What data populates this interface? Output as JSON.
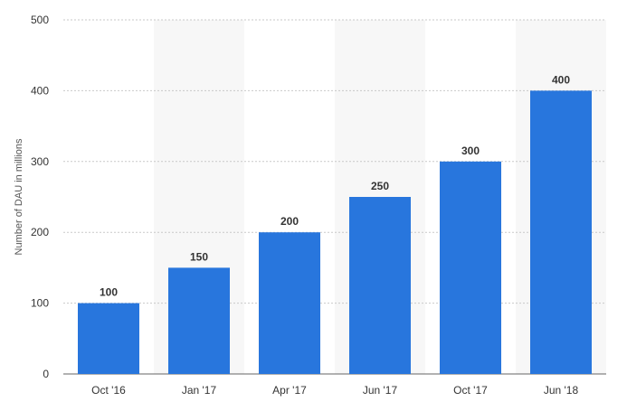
{
  "chart_data": {
    "type": "bar",
    "title": "",
    "xlabel": "",
    "ylabel": "Number of DAU in millions",
    "categories": [
      "Oct '16",
      "Jan '17",
      "Apr '17",
      "Jun '17",
      "Oct '17",
      "Jun '18"
    ],
    "values": [
      100,
      150,
      200,
      250,
      300,
      400
    ],
    "data_labels": [
      "100",
      "150",
      "200",
      "250",
      "300",
      "400"
    ],
    "ylim": [
      0,
      500
    ],
    "yticks": [
      0,
      100,
      200,
      300,
      400,
      500
    ],
    "ytick_labels": [
      "0",
      "100",
      "200",
      "300",
      "400",
      "500"
    ],
    "grid": true,
    "legend": "none",
    "bar_color": "#2876dd",
    "band_color": "#f7f7f7",
    "grid_color": "#c9c9c9"
  }
}
